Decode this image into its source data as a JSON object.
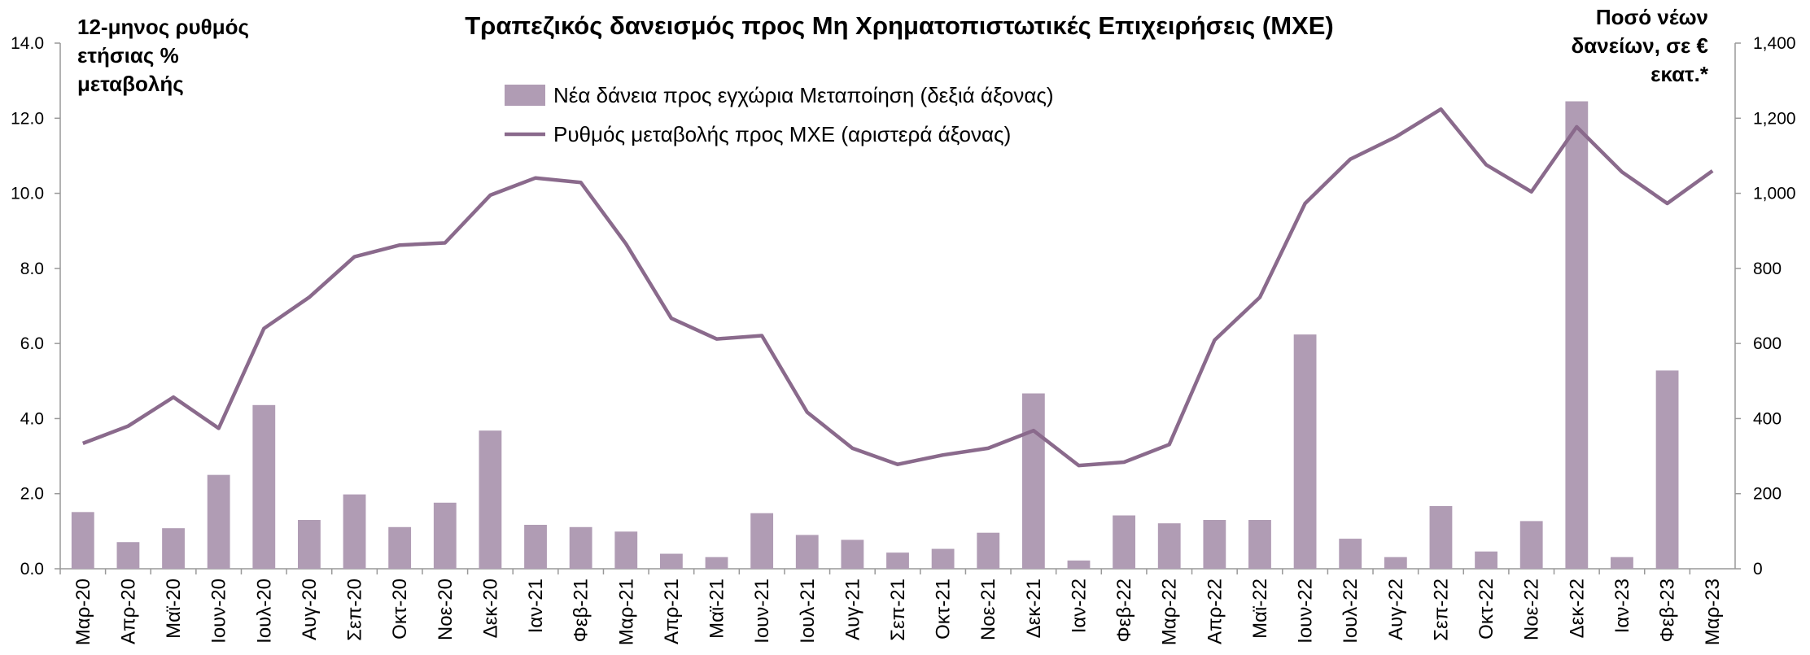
{
  "chart_data": {
    "type": "combo",
    "title": "Τραπεζικός δανεισμός προς Μη Χρηματοπιστωτικές Επιχειρήσεις (ΜΧΕ)",
    "ylabel": [
      "12-μηνος ρυθμός",
      "ετήσιας %",
      "μεταβολής"
    ],
    "y2label": [
      "Ποσό νέων",
      "δανείων, σε €",
      "εκατ.*"
    ],
    "categories": [
      "Μαρ-20",
      "Απρ-20",
      "Μαϊ-20",
      "Ιουν-20",
      "Ιουλ-20",
      "Αυγ-20",
      "Σεπ-20",
      "Οκτ-20",
      "Νοε-20",
      "Δεκ-20",
      "Ιαν-21",
      "Φεβ-21",
      "Μαρ-21",
      "Απρ-21",
      "Μαϊ-21",
      "Ιουν-21",
      "Ιουλ-21",
      "Αυγ-21",
      "Σεπ-21",
      "Οκτ-21",
      "Νοε-21",
      "Δεκ-21",
      "Ιαν-22",
      "Φεβ-22",
      "Μαρ-22",
      "Απρ-22",
      "Μαϊ-22",
      "Ιουν-22",
      "Ιουλ-22",
      "Αυγ-22",
      "Σεπ-22",
      "Οκτ-22",
      "Νοε-22",
      "Δεκ-22",
      "Ιαν-23",
      "Φεβ-23",
      "Μαρ-23"
    ],
    "series": [
      {
        "name": "Νέα δάνεια προς εγχώρια Μεταποίηση (δεξιά άξονας)",
        "type": "bar",
        "axis": "y2",
        "color": "#b09cb4",
        "values": [
          151,
          71,
          108,
          250,
          436,
          130,
          198,
          111,
          176,
          368,
          117,
          111,
          99,
          40,
          31,
          148,
          90,
          77,
          43,
          53,
          96,
          467,
          22,
          142,
          121,
          130,
          130,
          624,
          80,
          31,
          167,
          46,
          127,
          1245,
          31,
          528,
          null
        ]
      },
      {
        "name": "Ρυθμός μεταβολής προς ΜΧΕ (αριστερά άξονας)",
        "type": "line",
        "axis": "y",
        "color": "#8a6a8c",
        "values": [
          3.34,
          3.8,
          4.57,
          3.74,
          6.4,
          7.23,
          8.31,
          8.62,
          8.68,
          9.95,
          10.41,
          10.29,
          8.65,
          6.67,
          6.12,
          6.21,
          4.17,
          3.21,
          2.78,
          3.03,
          3.21,
          3.68,
          2.75,
          2.84,
          3.31,
          6.09,
          7.23,
          9.73,
          10.91,
          11.5,
          12.24,
          10.76,
          10.04,
          11.77,
          10.57,
          9.73,
          10.6
        ]
      }
    ],
    "ylim": [
      0,
      14
    ],
    "yticks": [
      {
        "value": 0,
        "label": "0.0"
      },
      {
        "value": 2,
        "label": "2.0"
      },
      {
        "value": 4,
        "label": "4.0"
      },
      {
        "value": 6,
        "label": "6.0"
      },
      {
        "value": 8,
        "label": "8.0"
      },
      {
        "value": 10,
        "label": "10.0"
      },
      {
        "value": 12,
        "label": "12.0"
      },
      {
        "value": 14,
        "label": "14.0"
      }
    ],
    "y2lim": [
      0,
      1400
    ],
    "y2ticks": [
      0,
      200,
      400,
      600,
      800,
      {
        "value": 1000,
        "label": "1,000"
      },
      {
        "value": 1200,
        "label": "1,200"
      },
      {
        "value": 1400,
        "label": "1,400"
      }
    ],
    "grid": false
  }
}
